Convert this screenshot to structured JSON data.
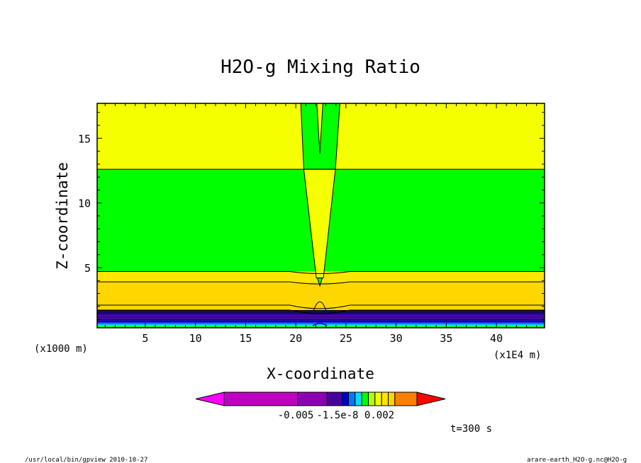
{
  "chart_data": {
    "type": "contour",
    "title": "H2O-g Mixing Ratio",
    "xlabel": "X-coordinate",
    "ylabel": "Z-coordinate",
    "x_unit": "(x1E4 m)",
    "y_unit": "(x1000 m)",
    "x_ticks": [
      5,
      10,
      15,
      20,
      25,
      30,
      35,
      40
    ],
    "y_ticks": [
      5,
      10,
      15
    ],
    "xlim": [
      0.2,
      44.8
    ],
    "ylim": [
      0.35,
      17.7
    ],
    "bands": [
      {
        "z0": 0.35,
        "z1": 0.5,
        "color": "#00ff00"
      },
      {
        "z0": 0.5,
        "z1": 0.62,
        "color": "#00dcff"
      },
      {
        "z0": 0.62,
        "z1": 0.75,
        "color": "#0078ff"
      },
      {
        "z0": 0.75,
        "z1": 0.9,
        "color": "#0000cc"
      },
      {
        "z0": 0.9,
        "z1": 1.1,
        "color": "#2a0096"
      },
      {
        "z0": 1.1,
        "z1": 1.3,
        "color": "#46009c"
      },
      {
        "z0": 1.3,
        "z1": 1.5,
        "color": "#2a0096"
      },
      {
        "z0": 1.5,
        "z1": 1.62,
        "color": "#0a0a5a"
      },
      {
        "z0": 1.62,
        "z1": 1.72,
        "color": "#000000"
      },
      {
        "z0": 1.72,
        "z1": 2.1,
        "color": "#ffd700"
      },
      {
        "z0": 2.1,
        "z1": 3.9,
        "color": "#ffd700"
      },
      {
        "z0": 3.9,
        "z1": 4.7,
        "color": "#ffe600"
      },
      {
        "z0": 4.7,
        "z1": 12.6,
        "color": "#00ff00"
      },
      {
        "z0": 12.6,
        "z1": 17.7,
        "color": "#f5ff00"
      }
    ],
    "colorbar": {
      "colors": [
        "#ff00ff",
        "#c000c0",
        "#8c00b4",
        "#46009c",
        "#0000cc",
        "#0078ff",
        "#00dcff",
        "#00ff00",
        "#b4ff00",
        "#f5ff00",
        "#ffe600",
        "#ffd700",
        "#ff7f00",
        "#ff0000"
      ],
      "labels": [
        "-0.005",
        "-1.5e-8",
        "0.002"
      ]
    },
    "time_label": "t=300 s"
  },
  "footer": {
    "left": "/usr/local/bin/gpview  2010-10-27",
    "right": "arare-earth_H2O-g.nc@H2O-g"
  }
}
